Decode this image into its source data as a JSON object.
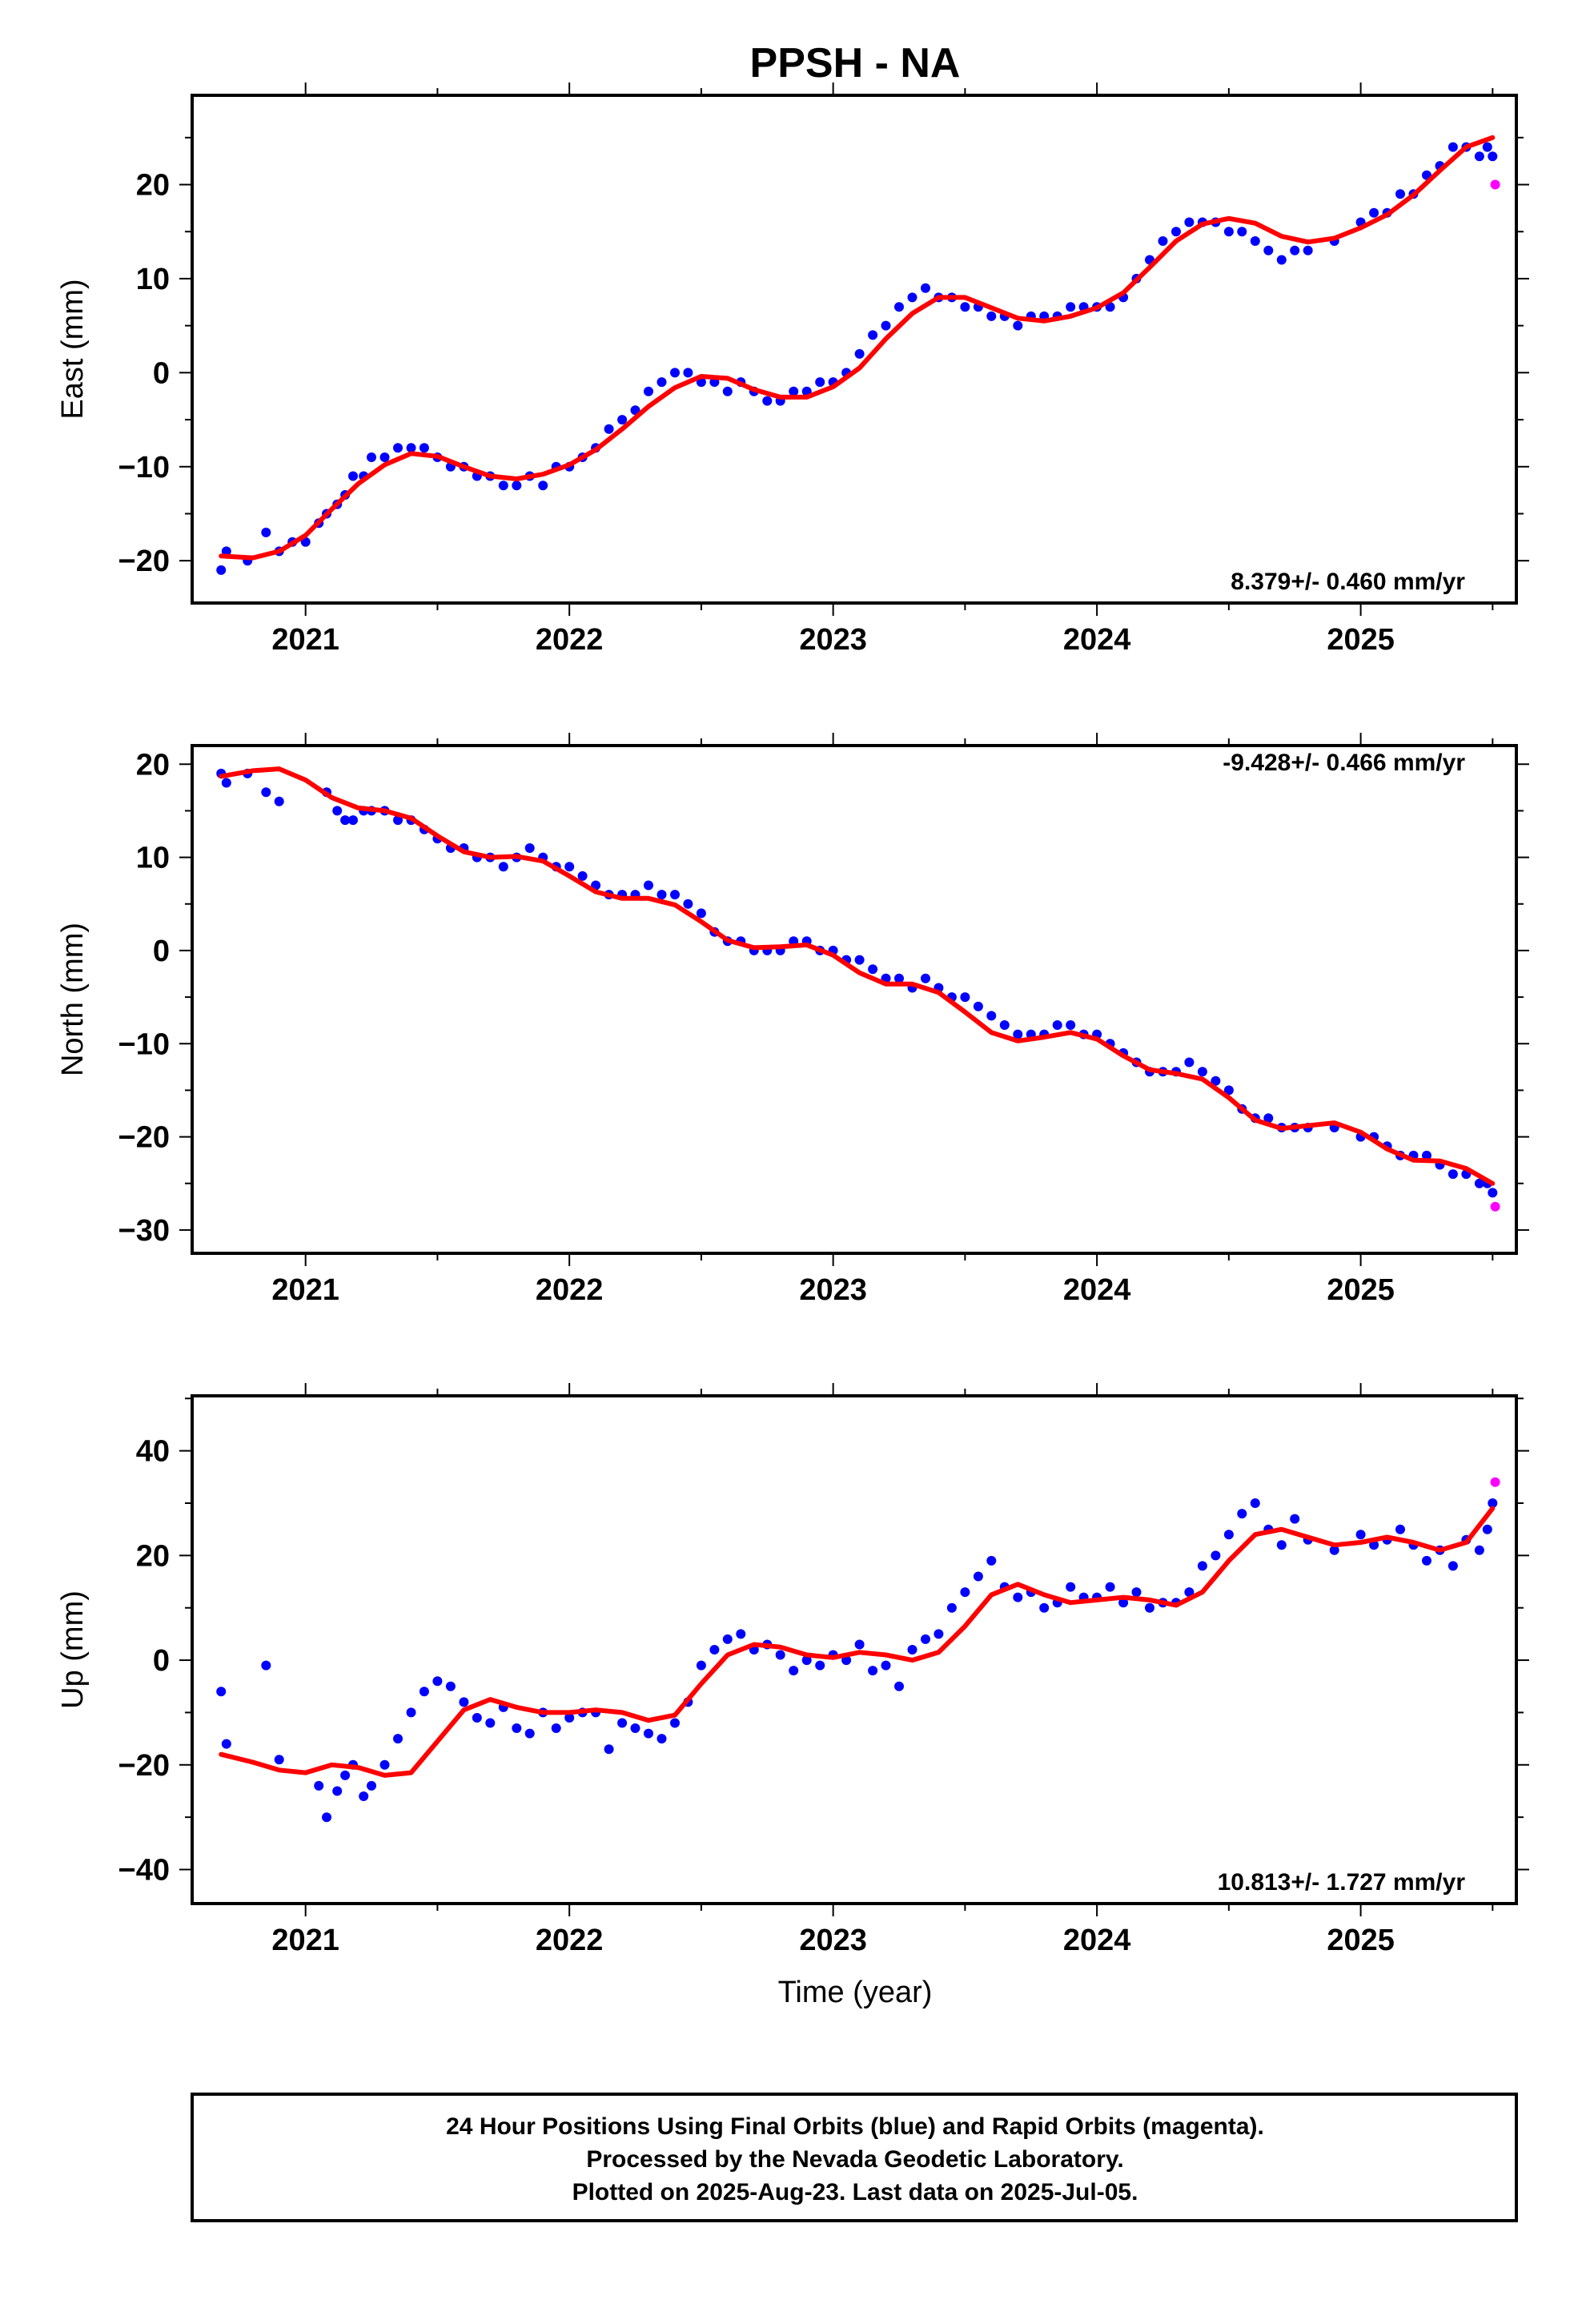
{
  "title": "PPSH - NA",
  "xlabel": "Time (year)",
  "footer": {
    "line1": "24 Hour Positions Using Final Orbits (blue) and Rapid Orbits (magenta).",
    "line2": "Processed by the Nevada Geodetic Laboratory.",
    "line3": "Plotted on 2025-Aug-23. Last data on 2025-Jul-05."
  },
  "colors": {
    "final": "#0000ff",
    "rapid": "#ff00ff",
    "model": "#ff0000"
  },
  "chart_data": [
    {
      "type": "scatter",
      "ylabel": "East (mm)",
      "rate": "8.379+/- 0.460 mm/yr",
      "rate_position": "bottom-right",
      "xlim": [
        2020.57,
        2025.59
      ],
      "ylim": [
        -24.5,
        29.5
      ],
      "xticks": [
        2021,
        2022,
        2023,
        2024,
        2025
      ],
      "yticks": [
        -20,
        -10,
        0,
        10,
        20
      ],
      "grid": false,
      "series": [
        {
          "kind": "points-final",
          "x": [
            2020.68,
            2020.7,
            2020.78,
            2020.85,
            2020.9,
            2020.95,
            2021.0,
            2021.05,
            2021.08,
            2021.12,
            2021.15,
            2021.18,
            2021.22,
            2021.25,
            2021.3,
            2021.35,
            2021.4,
            2021.45,
            2021.5,
            2021.55,
            2021.6,
            2021.65,
            2021.7,
            2021.75,
            2021.8,
            2021.85,
            2021.9,
            2021.95,
            2022.0,
            2022.05,
            2022.1,
            2022.15,
            2022.2,
            2022.25,
            2022.3,
            2022.35,
            2022.4,
            2022.45,
            2022.5,
            2022.55,
            2022.6,
            2022.65,
            2022.7,
            2022.75,
            2022.8,
            2022.85,
            2022.9,
            2022.95,
            2023.0,
            2023.05,
            2023.1,
            2023.15,
            2023.2,
            2023.25,
            2023.3,
            2023.35,
            2023.4,
            2023.45,
            2023.5,
            2023.55,
            2023.6,
            2023.65,
            2023.7,
            2023.75,
            2023.8,
            2023.85,
            2023.9,
            2023.95,
            2024.0,
            2024.05,
            2024.1,
            2024.15,
            2024.2,
            2024.25,
            2024.3,
            2024.35,
            2024.4,
            2024.45,
            2024.5,
            2024.55,
            2024.6,
            2024.65,
            2024.7,
            2024.75,
            2024.8,
            2024.9,
            2025.0,
            2025.05,
            2025.1,
            2025.15,
            2025.2,
            2025.25,
            2025.3,
            2025.35,
            2025.4,
            2025.45,
            2025.48,
            2025.5
          ],
          "y": [
            -21,
            -19,
            -20,
            -17,
            -19,
            -18,
            -18,
            -16,
            -15,
            -14,
            -13,
            -11,
            -11,
            -9,
            -9,
            -8,
            -8,
            -8,
            -9,
            -10,
            -10,
            -11,
            -11,
            -12,
            -12,
            -11,
            -12,
            -10,
            -10,
            -9,
            -8,
            -6,
            -5,
            -4,
            -2,
            -1,
            0,
            0,
            -1,
            -1,
            -2,
            -1,
            -2,
            -3,
            -3,
            -2,
            -2,
            -1,
            -1,
            0,
            2,
            4,
            5,
            7,
            8,
            9,
            8,
            8,
            7,
            7,
            6,
            6,
            5,
            6,
            6,
            6,
            7,
            7,
            7,
            7,
            8,
            10,
            12,
            14,
            15,
            16,
            16,
            16,
            15,
            15,
            14,
            13,
            12,
            13,
            13,
            14,
            16,
            17,
            17,
            19,
            19,
            21,
            22,
            24,
            24,
            23,
            24,
            23
          ]
        },
        {
          "kind": "points-rapid",
          "x": [
            2025.51
          ],
          "y": [
            20
          ]
        },
        {
          "kind": "model",
          "x": [
            2020.68,
            2020.8,
            2020.9,
            2021.0,
            2021.1,
            2021.2,
            2021.3,
            2021.4,
            2021.5,
            2021.6,
            2021.7,
            2021.8,
            2021.9,
            2022.0,
            2022.1,
            2022.2,
            2022.3,
            2022.4,
            2022.5,
            2022.6,
            2022.7,
            2022.8,
            2022.9,
            2023.0,
            2023.1,
            2023.2,
            2023.3,
            2023.4,
            2023.5,
            2023.6,
            2023.7,
            2023.8,
            2023.9,
            2024.0,
            2024.1,
            2024.2,
            2024.3,
            2024.4,
            2024.5,
            2024.6,
            2024.7,
            2024.8,
            2024.9,
            2025.0,
            2025.1,
            2025.2,
            2025.3,
            2025.4,
            2025.5
          ],
          "y": [
            -19.5,
            -19.7,
            -19.0,
            -17.3,
            -14.5,
            -11.8,
            -9.8,
            -8.6,
            -8.9,
            -10.0,
            -11.0,
            -11.3,
            -10.8,
            -9.8,
            -8.2,
            -6.0,
            -3.6,
            -1.6,
            -0.4,
            -0.6,
            -1.8,
            -2.6,
            -2.6,
            -1.5,
            0.5,
            3.6,
            6.3,
            8.0,
            8.0,
            6.9,
            5.8,
            5.5,
            6.0,
            6.9,
            8.5,
            11.2,
            14.0,
            15.8,
            16.4,
            15.9,
            14.5,
            13.9,
            14.3,
            15.4,
            16.8,
            18.9,
            21.5,
            24.0,
            25.0
          ]
        }
      ]
    },
    {
      "type": "scatter",
      "ylabel": "North (mm)",
      "rate": "-9.428+/- 0.466 mm/yr",
      "rate_position": "top-right",
      "xlim": [
        2020.57,
        2025.59
      ],
      "ylim": [
        -32.5,
        22
      ],
      "xticks": [
        2021,
        2022,
        2023,
        2024,
        2025
      ],
      "yticks": [
        -30,
        -20,
        -10,
        0,
        10,
        20
      ],
      "grid": false,
      "series": [
        {
          "kind": "points-final",
          "x": [
            2020.68,
            2020.7,
            2020.78,
            2020.85,
            2020.9,
            2021.08,
            2021.12,
            2021.15,
            2021.18,
            2021.22,
            2021.25,
            2021.3,
            2021.35,
            2021.4,
            2021.45,
            2021.5,
            2021.55,
            2021.6,
            2021.65,
            2021.7,
            2021.75,
            2021.8,
            2021.85,
            2021.9,
            2021.95,
            2022.0,
            2022.05,
            2022.1,
            2022.15,
            2022.2,
            2022.25,
            2022.3,
            2022.35,
            2022.4,
            2022.45,
            2022.5,
            2022.55,
            2022.6,
            2022.65,
            2022.7,
            2022.75,
            2022.8,
            2022.85,
            2022.9,
            2022.95,
            2023.0,
            2023.05,
            2023.1,
            2023.15,
            2023.2,
            2023.25,
            2023.3,
            2023.35,
            2023.4,
            2023.45,
            2023.5,
            2023.55,
            2023.6,
            2023.65,
            2023.7,
            2023.75,
            2023.8,
            2023.85,
            2023.9,
            2023.95,
            2024.0,
            2024.05,
            2024.1,
            2024.15,
            2024.2,
            2024.25,
            2024.3,
            2024.35,
            2024.4,
            2024.45,
            2024.5,
            2024.55,
            2024.6,
            2024.65,
            2024.7,
            2024.75,
            2024.8,
            2024.9,
            2025.0,
            2025.05,
            2025.1,
            2025.15,
            2025.2,
            2025.25,
            2025.3,
            2025.35,
            2025.4,
            2025.45,
            2025.48,
            2025.5
          ],
          "y": [
            19,
            18,
            19,
            17,
            16,
            17,
            15,
            14,
            14,
            15,
            15,
            15,
            14,
            14,
            13,
            12,
            11,
            11,
            10,
            10,
            9,
            10,
            11,
            10,
            9,
            9,
            8,
            7,
            6,
            6,
            6,
            7,
            6,
            6,
            5,
            4,
            2,
            1,
            1,
            0,
            0,
            0,
            1,
            1,
            0,
            0,
            -1,
            -1,
            -2,
            -3,
            -3,
            -4,
            -3,
            -4,
            -5,
            -5,
            -6,
            -7,
            -8,
            -9,
            -9,
            -9,
            -8,
            -8,
            -9,
            -9,
            -10,
            -11,
            -12,
            -13,
            -13,
            -13,
            -12,
            -13,
            -14,
            -15,
            -17,
            -18,
            -18,
            -19,
            -19,
            -19,
            -19,
            -20,
            -20,
            -21,
            -22,
            -22,
            -22,
            -23,
            -24,
            -24,
            -25,
            -25,
            -26
          ]
        },
        {
          "kind": "points-rapid",
          "x": [
            2025.51
          ],
          "y": [
            -27.5
          ]
        },
        {
          "kind": "model",
          "x": [
            2020.68,
            2020.8,
            2020.9,
            2021.0,
            2021.1,
            2021.2,
            2021.3,
            2021.4,
            2021.5,
            2021.6,
            2021.7,
            2021.8,
            2021.9,
            2022.0,
            2022.1,
            2022.2,
            2022.3,
            2022.4,
            2022.5,
            2022.6,
            2022.7,
            2022.8,
            2022.9,
            2023.0,
            2023.1,
            2023.2,
            2023.3,
            2023.4,
            2023.5,
            2023.6,
            2023.7,
            2023.8,
            2023.9,
            2024.0,
            2024.1,
            2024.2,
            2024.3,
            2024.4,
            2024.5,
            2024.6,
            2024.7,
            2024.8,
            2024.9,
            2025.0,
            2025.1,
            2025.2,
            2025.3,
            2025.4,
            2025.5
          ],
          "y": [
            18.7,
            19.3,
            19.5,
            18.3,
            16.4,
            15.3,
            15.0,
            14.2,
            12.3,
            10.6,
            10.0,
            10.1,
            9.6,
            8.0,
            6.3,
            5.6,
            5.6,
            4.9,
            3.1,
            1.1,
            0.3,
            0.4,
            0.6,
            -0.5,
            -2.4,
            -3.6,
            -3.6,
            -4.5,
            -6.6,
            -8.8,
            -9.7,
            -9.3,
            -8.8,
            -9.5,
            -11.3,
            -12.8,
            -13.2,
            -13.8,
            -15.8,
            -18.2,
            -19.1,
            -18.8,
            -18.5,
            -19.5,
            -21.3,
            -22.5,
            -22.6,
            -23.4,
            -25.0
          ]
        }
      ]
    },
    {
      "type": "scatter",
      "ylabel": "Up (mm)",
      "rate": "10.813+/- 1.727 mm/yr",
      "rate_position": "bottom-right",
      "xlim": [
        2020.57,
        2025.59
      ],
      "ylim": [
        -46.5,
        50.5
      ],
      "xticks": [
        2021,
        2022,
        2023,
        2024,
        2025
      ],
      "yticks": [
        -40,
        -20,
        0,
        20,
        40
      ],
      "grid": false,
      "series": [
        {
          "kind": "points-final",
          "x": [
            2020.68,
            2020.7,
            2020.85,
            2020.9,
            2021.05,
            2021.08,
            2021.12,
            2021.15,
            2021.18,
            2021.22,
            2021.25,
            2021.3,
            2021.35,
            2021.4,
            2021.45,
            2021.5,
            2021.55,
            2021.6,
            2021.65,
            2021.7,
            2021.75,
            2021.8,
            2021.85,
            2021.9,
            2021.95,
            2022.0,
            2022.05,
            2022.1,
            2022.15,
            2022.2,
            2022.25,
            2022.3,
            2022.35,
            2022.4,
            2022.45,
            2022.5,
            2022.55,
            2022.6,
            2022.65,
            2022.7,
            2022.75,
            2022.8,
            2022.85,
            2022.9,
            2022.95,
            2023.0,
            2023.05,
            2023.1,
            2023.15,
            2023.2,
            2023.25,
            2023.3,
            2023.35,
            2023.4,
            2023.45,
            2023.5,
            2023.55,
            2023.6,
            2023.65,
            2023.7,
            2023.75,
            2023.8,
            2023.85,
            2023.9,
            2023.95,
            2024.0,
            2024.05,
            2024.1,
            2024.15,
            2024.2,
            2024.25,
            2024.3,
            2024.35,
            2024.4,
            2024.45,
            2024.5,
            2024.55,
            2024.6,
            2024.65,
            2024.7,
            2024.75,
            2024.8,
            2024.9,
            2025.0,
            2025.05,
            2025.1,
            2025.15,
            2025.2,
            2025.25,
            2025.3,
            2025.35,
            2025.4,
            2025.45,
            2025.48,
            2025.5
          ],
          "y": [
            -6,
            -16,
            -1,
            -19,
            -24,
            -30,
            -25,
            -22,
            -20,
            -26,
            -24,
            -20,
            -15,
            -10,
            -6,
            -4,
            -5,
            -8,
            -11,
            -12,
            -9,
            -13,
            -14,
            -10,
            -13,
            -11,
            -10,
            -10,
            -17,
            -12,
            -13,
            -14,
            -15,
            -12,
            -8,
            -1,
            2,
            4,
            5,
            2,
            3,
            1,
            -2,
            0,
            -1,
            1,
            0,
            3,
            -2,
            -1,
            -5,
            2,
            4,
            5,
            10,
            13,
            16,
            19,
            14,
            12,
            13,
            10,
            11,
            14,
            12,
            12,
            14,
            11,
            13,
            10,
            11,
            11,
            13,
            18,
            20,
            24,
            28,
            30,
            25,
            22,
            27,
            23,
            21,
            24,
            22,
            23,
            25,
            22,
            19,
            21,
            18,
            23,
            21,
            25,
            30
          ]
        },
        {
          "kind": "points-rapid",
          "x": [
            2025.51
          ],
          "y": [
            34
          ]
        },
        {
          "kind": "model",
          "x": [
            2020.68,
            2020.8,
            2020.9,
            2021.0,
            2021.1,
            2021.2,
            2021.3,
            2021.4,
            2021.5,
            2021.6,
            2021.7,
            2021.8,
            2021.9,
            2022.0,
            2022.1,
            2022.2,
            2022.3,
            2022.4,
            2022.5,
            2022.6,
            2022.7,
            2022.8,
            2022.9,
            2023.0,
            2023.1,
            2023.2,
            2023.3,
            2023.4,
            2023.5,
            2023.6,
            2023.7,
            2023.8,
            2023.9,
            2024.0,
            2024.1,
            2024.2,
            2024.3,
            2024.4,
            2024.5,
            2024.6,
            2024.7,
            2024.8,
            2024.9,
            2025.0,
            2025.1,
            2025.2,
            2025.3,
            2025.4,
            2025.5
          ],
          "y": [
            -18.0,
            -19.5,
            -21.0,
            -21.5,
            -20.0,
            -20.5,
            -22.0,
            -21.5,
            -15.5,
            -9.5,
            -7.5,
            -9.0,
            -10.0,
            -10.0,
            -9.5,
            -10.0,
            -11.5,
            -10.5,
            -4.5,
            1.0,
            3.0,
            2.5,
            1.0,
            0.5,
            1.5,
            1.0,
            0.0,
            1.5,
            6.5,
            12.5,
            14.5,
            12.5,
            11.0,
            11.5,
            12.0,
            11.5,
            10.5,
            13.0,
            19.0,
            24.0,
            25.0,
            23.5,
            22.0,
            22.5,
            23.5,
            22.5,
            21.0,
            22.5,
            29.0
          ]
        }
      ]
    }
  ]
}
